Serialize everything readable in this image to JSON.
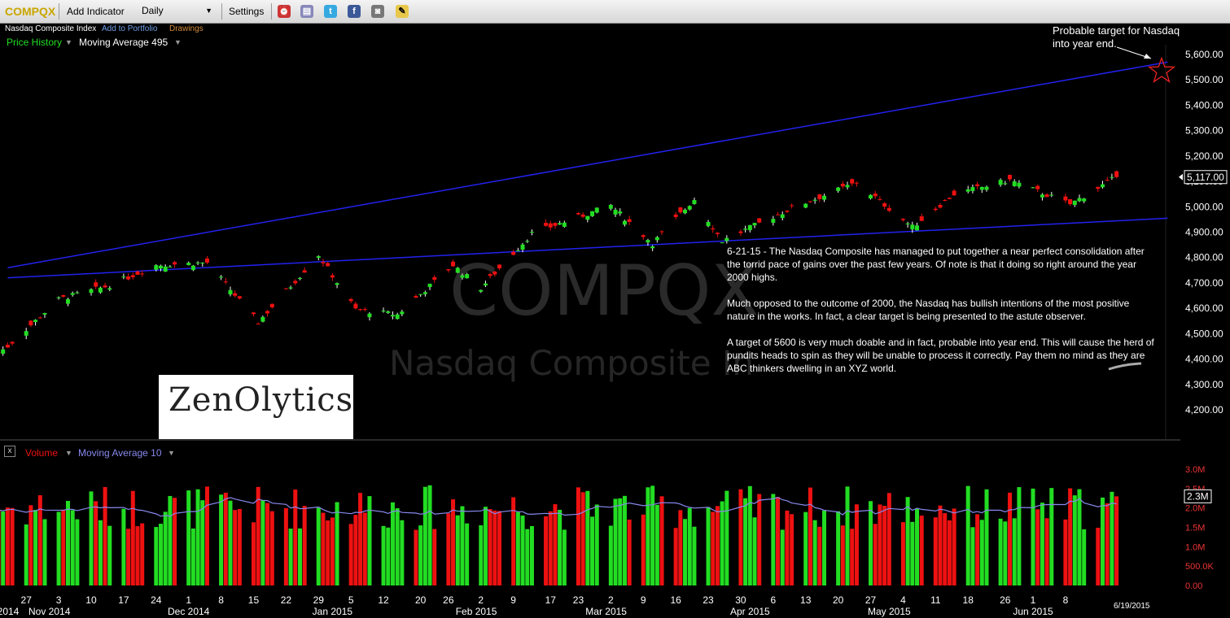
{
  "toolbar": {
    "symbol": "COMPQX",
    "add_indicator": "Add Indicator",
    "interval": "Daily",
    "settings": "Settings",
    "icons": [
      "alarm-icon",
      "print-icon",
      "twitter-icon",
      "facebook-icon",
      "camera-icon",
      "note-icon"
    ]
  },
  "subheader": {
    "name": "Nasdaq Composite Index",
    "add_to_portfolio": "Add to Portfolio",
    "drawings": "Drawings"
  },
  "price_panel": {
    "series_label": "Price History",
    "overlay_label": "Moving Average 495",
    "last_price": "5,117.00",
    "watermark_symbol": "COMPQX",
    "watermark_name": "Nasdaq Composite In"
  },
  "volume_panel": {
    "close_label": "x",
    "series_label": "Volume",
    "overlay_label": "Moving Average 10",
    "last_volume": "2.3M"
  },
  "annotation": {
    "target_text_1": "Probable target for Nasdaq",
    "target_text_2": "into year end.",
    "p1": "6-21-15 - The Nasdaq Composite has managed to put together a near perfect consolidation after the torrid pace of gains over the past few years. Of note is that it doing so right around the year 2000 highs.",
    "p2": "Much opposed to the outcome of 2000, the Nasdaq has bullish intentions of the most positive nature in the works. In fact, a clear target is being presented to the astute observer.",
    "p3": "A target of 5600 is very much doable and in fact, probable into year end. This will cause the herd of pundits heads to spin as they will be unable to process it correctly. Pay them no mind as they are ABC thinkers dwelling in an XYZ world."
  },
  "logo": {
    "text": "ZenOlytics"
  },
  "date_stamp": "6/19/2015",
  "colors": {
    "up": "#22dd22",
    "down": "#ee1111",
    "trend": "#2222ee",
    "ma": "#8888ee",
    "axis_text": "#ffffff"
  },
  "chart_data": {
    "type": "candlestick",
    "y_axis": {
      "min": 4200,
      "max": 5600,
      "ticks": [
        "4,200.00",
        "4,300.00",
        "4,400.00",
        "4,500.00",
        "4,600.00",
        "4,700.00",
        "4,800.00",
        "4,900.00",
        "5,000.00",
        "5,100.00",
        "5,200.00",
        "5,300.00",
        "5,400.00",
        "5,500.00",
        "5,600.00"
      ]
    },
    "volume_axis": {
      "ticks": [
        "0.00",
        "500.0K",
        "1.0M",
        "1.5M",
        "2.0M",
        "2.5M",
        "3.0M"
      ]
    },
    "x_axis": {
      "day_labels": [
        "27",
        "3",
        "10",
        "17",
        "24",
        "1",
        "8",
        "15",
        "22",
        "29",
        "5",
        "12",
        "20",
        "26",
        "2",
        "9",
        "17",
        "23",
        "2",
        "9",
        "16",
        "23",
        "30",
        "6",
        "13",
        "20",
        "27",
        "4",
        "11",
        "18",
        "26",
        "1",
        "8"
      ],
      "month_labels": [
        "2014",
        "Nov 2014",
        "Dec 2014",
        "Jan 2015",
        "Feb 2015",
        "Mar 2015",
        "Apr 2015",
        "May 2015",
        "Jun 2015"
      ]
    },
    "price_anchors": [
      {
        "date": "2014-10-23",
        "close": 4450
      },
      {
        "date": "2014-11-03",
        "close": 4635
      },
      {
        "date": "2014-11-14",
        "close": 4690
      },
      {
        "date": "2014-11-24",
        "close": 4770
      },
      {
        "date": "2014-12-05",
        "close": 4780
      },
      {
        "date": "2014-12-16",
        "close": 4545
      },
      {
        "date": "2014-12-29",
        "close": 4810
      },
      {
        "date": "2015-01-06",
        "close": 4595
      },
      {
        "date": "2015-01-15",
        "close": 4575
      },
      {
        "date": "2015-01-27",
        "close": 4770
      },
      {
        "date": "2015-02-02",
        "close": 4680
      },
      {
        "date": "2015-02-13",
        "close": 4895
      },
      {
        "date": "2015-03-02",
        "close": 5005
      },
      {
        "date": "2015-03-11",
        "close": 4855
      },
      {
        "date": "2015-03-20",
        "close": 5030
      },
      {
        "date": "2015-03-26",
        "close": 4865
      },
      {
        "date": "2015-04-10",
        "close": 4995
      },
      {
        "date": "2015-04-24",
        "close": 5095
      },
      {
        "date": "2015-05-06",
        "close": 4920
      },
      {
        "date": "2015-05-15",
        "close": 5050
      },
      {
        "date": "2015-05-27",
        "close": 5105
      },
      {
        "date": "2015-06-09",
        "close": 5010
      },
      {
        "date": "2015-06-19",
        "close": 5117
      }
    ],
    "volume_range": [
      700000,
      2800000
    ],
    "trendlines": [
      {
        "name": "upper",
        "from": {
          "date": "2014-10-23",
          "value": 4760
        },
        "to": {
          "date": "2015-06-30",
          "value": 5570
        }
      },
      {
        "name": "lower",
        "from": {
          "date": "2014-10-23",
          "value": 4720
        },
        "to": {
          "date": "2015-06-30",
          "value": 4955
        }
      }
    ],
    "target": {
      "date": "2015-06-30",
      "value": 5560
    },
    "last": {
      "close": 5117,
      "volume": 2300000
    }
  }
}
